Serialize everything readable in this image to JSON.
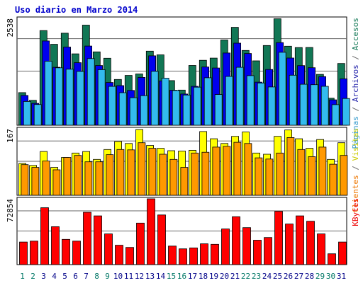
{
  "chart_data": {
    "type": "bar",
    "title": "Uso diario en Marzo 2014",
    "days": [
      {
        "label": "1",
        "weekend": true
      },
      {
        "label": "2",
        "weekend": true
      },
      {
        "label": "3",
        "weekend": false
      },
      {
        "label": "4",
        "weekend": false
      },
      {
        "label": "5",
        "weekend": false
      },
      {
        "label": "6",
        "weekend": false
      },
      {
        "label": "7",
        "weekend": false
      },
      {
        "label": "8",
        "weekend": true
      },
      {
        "label": "9",
        "weekend": true
      },
      {
        "label": "10",
        "weekend": false
      },
      {
        "label": "11",
        "weekend": false
      },
      {
        "label": "12",
        "weekend": false
      },
      {
        "label": "13",
        "weekend": false
      },
      {
        "label": "14",
        "weekend": false
      },
      {
        "label": "15",
        "weekend": true
      },
      {
        "label": "16",
        "weekend": true
      },
      {
        "label": "17",
        "weekend": false
      },
      {
        "label": "18",
        "weekend": false
      },
      {
        "label": "19",
        "weekend": false
      },
      {
        "label": "20",
        "weekend": false
      },
      {
        "label": "21",
        "weekend": false
      },
      {
        "label": "22",
        "weekend": true
      },
      {
        "label": "23",
        "weekend": true
      },
      {
        "label": "24",
        "weekend": false
      },
      {
        "label": "25",
        "weekend": false
      },
      {
        "label": "26",
        "weekend": false
      },
      {
        "label": "27",
        "weekend": false
      },
      {
        "label": "28",
        "weekend": false
      },
      {
        "label": "29",
        "weekend": true
      },
      {
        "label": "30",
        "weekend": true
      },
      {
        "label": "31",
        "weekend": false
      }
    ],
    "panels": [
      {
        "id": "traffic",
        "max_label": "2538",
        "ymax": 2538,
        "legend": [
          {
            "text": "Páginas",
            "color": "#3399cc"
          },
          {
            "text": " / ",
            "color": "#666666"
          },
          {
            "text": "Archivos",
            "color": "#2222aa"
          },
          {
            "text": " / ",
            "color": "#666666"
          },
          {
            "text": "Accesos",
            "color": "#117755"
          }
        ],
        "series": [
          {
            "name": "Accesos",
            "color": "#117755",
            "values": [
              775,
              592,
              2249,
              1922,
              2186,
              1696,
              2379,
              1743,
              1592,
              1087,
              1183,
              1219,
              1759,
              1673,
              1060,
              835,
              1421,
              1543,
              1595,
              2025,
              2326,
              1776,
              1530,
              1894,
              2529,
              1878,
              1846,
              1848,
              1208,
              642,
              1468
            ]
          },
          {
            "name": "Archivos",
            "color": "#0000ee",
            "values": [
              708,
              519,
              2002,
              1376,
              1858,
              1486,
              1881,
              1418,
              1016,
              942,
              827,
              1136,
              1649,
              1054,
              832,
              741,
              925,
              1383,
              1359,
              1716,
              1949,
              1704,
              1023,
              1325,
              1963,
              1596,
              1417,
              1367,
              1155,
              603,
              1103
            ]
          },
          {
            "name": "Páginas",
            "color": "#33bbee",
            "values": [
              565,
              492,
              1521,
              1364,
              1331,
              1279,
              1583,
              1321,
              923,
              773,
              653,
              703,
              1280,
              1117,
              826,
              718,
              905,
              1128,
              729,
              1160,
              1376,
              1178,
              1003,
              910,
              1733,
              1189,
              974,
              963,
              925,
              489,
              636
            ]
          }
        ]
      },
      {
        "id": "visits",
        "max_label": "167",
        "ymax": 167,
        "legend": [
          {
            "text": "Clientes",
            "color": "#ee7700"
          },
          {
            "text": " / ",
            "color": "#666666"
          },
          {
            "text": "Visitas",
            "color": "#cccc00"
          }
        ],
        "series": [
          {
            "name": "Visitas",
            "color": "#ffff00",
            "values": [
              80,
              75,
              110,
              70,
              95,
              106,
              110,
              90,
              115,
              135,
              130,
              165,
              125,
              118,
              112,
              111,
              113,
              160,
              142,
              130,
              148,
              159,
              106,
              103,
              148,
              164,
              142,
              118,
              140,
              90,
              132
            ]
          },
          {
            "name": "Clientes",
            "color": "#ff9900",
            "values": [
              77,
              70,
              86,
              64,
              95,
              100,
              84,
              84,
              102,
              115,
              114,
              132,
              118,
              103,
              90,
              70,
              106,
              108,
              121,
              123,
              133,
              130,
              94,
              91,
              106,
              145,
              115,
              97,
              121,
              78,
              100
            ]
          }
        ]
      },
      {
        "id": "kbytes",
        "max_label": "72854",
        "ymax": 72854,
        "legend": [
          {
            "text": "KBytes",
            "color": "#ee0000"
          }
        ],
        "series": [
          {
            "name": "KBytes",
            "color": "#ff0000",
            "values": [
              25000,
              26000,
              63000,
              42000,
              28000,
              26000,
              58000,
              54000,
              34000,
              21500,
              19000,
              46000,
              72854,
              55000,
              20500,
              17500,
              18500,
              23000,
              22500,
              39500,
              53000,
              41000,
              27000,
              30000,
              59000,
              45000,
              54000,
              48000,
              34000,
              12000,
              25000
            ]
          }
        ]
      }
    ]
  }
}
